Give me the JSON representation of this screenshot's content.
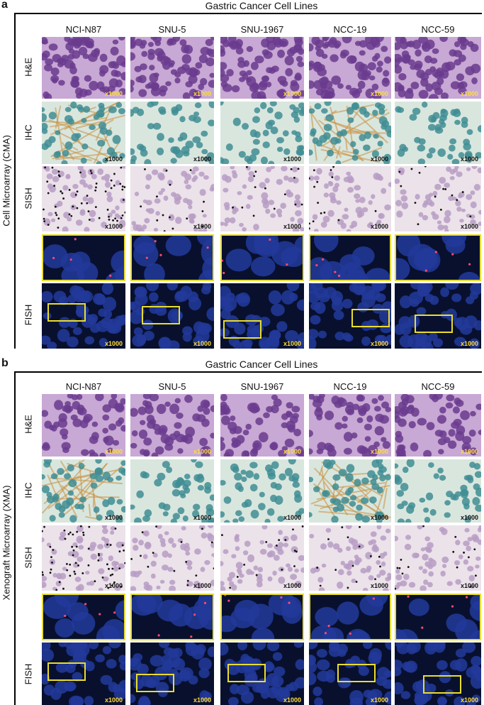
{
  "panels": [
    {
      "letter": "a",
      "title": "Gastric Cancer Cell Lines",
      "side_label": "Cell Microarray (CMA)",
      "columns": [
        "NCI-N87",
        "SNU-5",
        "SNU-1967",
        "NCC-19",
        "NCC-59"
      ],
      "rows": [
        "H&E",
        "IHC",
        "SISH",
        "FISH"
      ],
      "magnification": "x1000"
    },
    {
      "letter": "b",
      "title": "Gastric Cancer Cell Lines",
      "side_label": "Xenograft Microarray (XMA)",
      "columns": [
        "NCI-N87",
        "SNU-5",
        "SNU-1967",
        "NCC-19",
        "NCC-59"
      ],
      "rows": [
        "H&E",
        "IHC",
        "SISH",
        "FISH"
      ],
      "magnification": "x1000"
    }
  ],
  "colors": {
    "he_bg": "#c8a8d4",
    "he_cell": "#6a3b8e",
    "ihc_bg": "#d9e6de",
    "ihc_cell": "#3f8d94",
    "ihc_membrane": "#c99040",
    "sish_bg": "#ece2ea",
    "sish_cell": "#b79cc4",
    "fish_bg": "#08102e",
    "fish_cell": "#223a9a",
    "zoom_box": "#e9dd2c",
    "mag_yellow": "#ffde3a"
  }
}
